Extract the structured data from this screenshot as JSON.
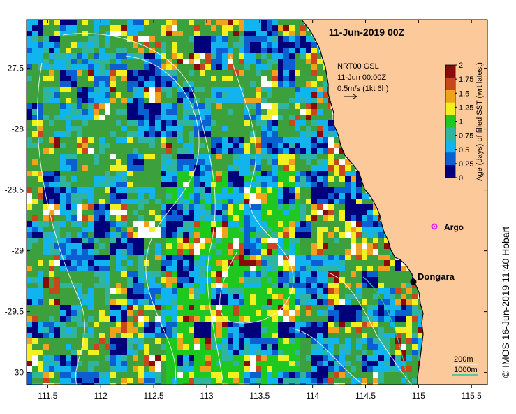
{
  "title": "11-Jun-2019 00Z",
  "credit": "© IMOS 16-Jun-2019 11:40 Hobart",
  "axes": {
    "x_ticks": [
      "111.5",
      "112",
      "112.5",
      "113",
      "113.5",
      "114",
      "114.5",
      "115",
      "115.5"
    ],
    "y_ticks": [
      "-27.5",
      "-28",
      "-28.5",
      "-29",
      "-29.5",
      "-30"
    ],
    "x_range": [
      111.3,
      115.65
    ],
    "y_range": [
      -27.1,
      -30.1
    ]
  },
  "current_legend": {
    "line1": "NRT00 GSL",
    "line2": "11-Jun 00:00Z",
    "line3": "0.5m/s (1kt 6h)"
  },
  "colorbar": {
    "label": "Age (days) of filled SST (wrt latest)",
    "ticks": [
      "2",
      "1.75",
      "1.5",
      "1.25",
      "1",
      "0.75",
      "0.5",
      "0.25",
      "0"
    ],
    "colors": [
      "#8b0a0a",
      "#c9461c",
      "#f0a21e",
      "#f2f01e",
      "#1ec81e",
      "#2eb4a0",
      "#12b4f0",
      "#0a60d0",
      "#00007a"
    ]
  },
  "places": {
    "argo": "Argo",
    "dongara": "Dongara"
  },
  "contour_legend": {
    "c200": "200m",
    "c1000": "1000m"
  },
  "colors": {
    "land": "#fbc99a",
    "coast": "#000000",
    "argo_marker": "#e020e0",
    "contour_1000": "#20c8a0"
  }
}
